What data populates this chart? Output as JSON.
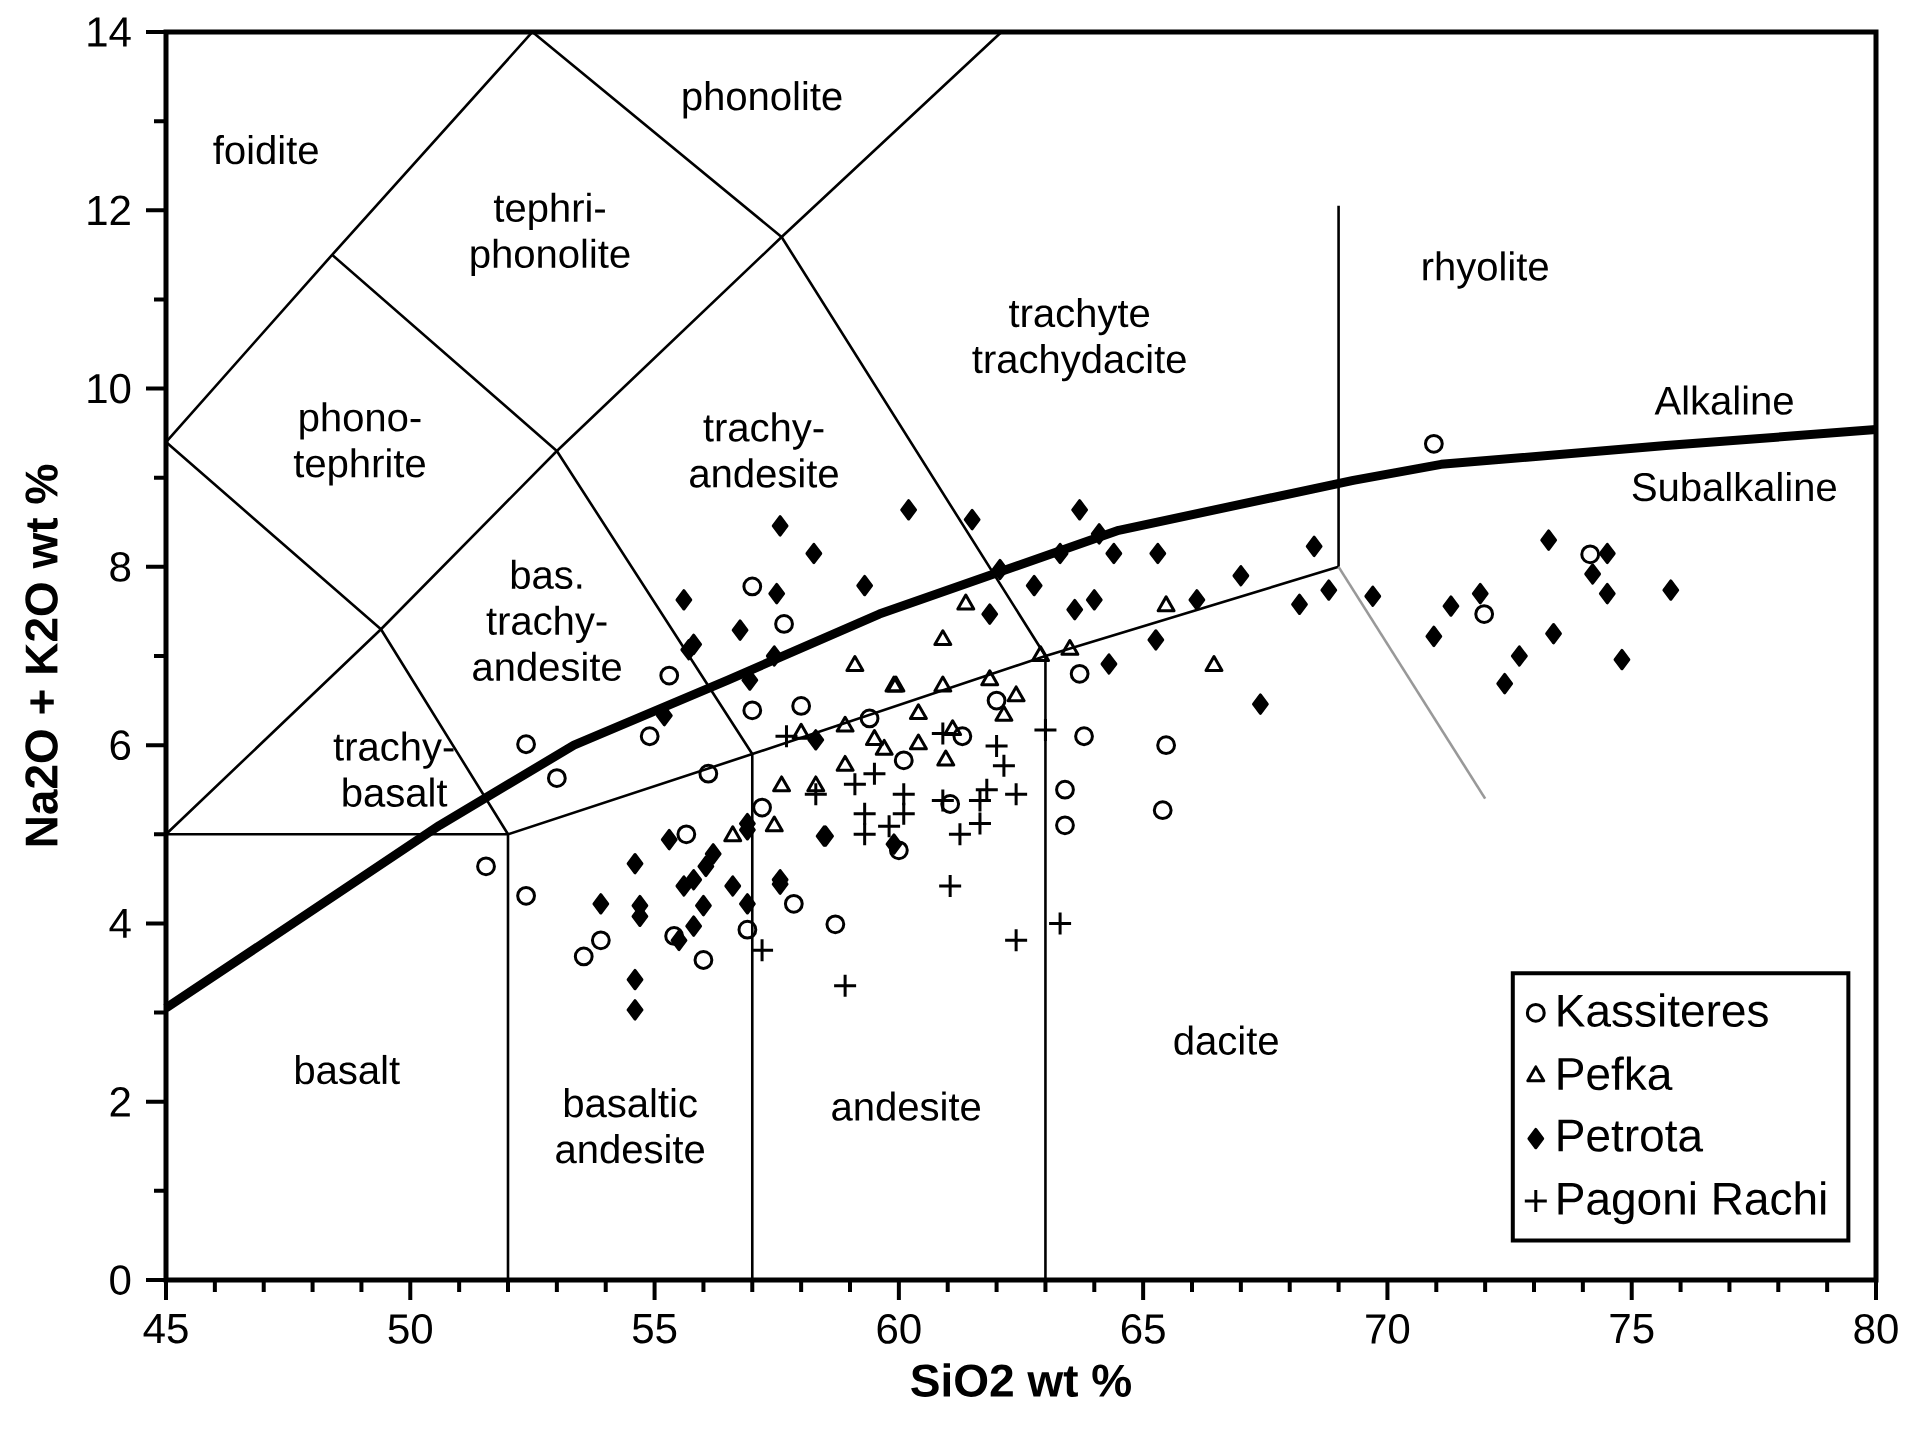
{
  "chart_data": {
    "type": "scatter",
    "xlabel": "SiO2 wt %",
    "ylabel": "Na2O + K2O wt %",
    "xlim": [
      45,
      80
    ],
    "ylim": [
      0,
      14
    ],
    "xticks": [
      45,
      50,
      55,
      60,
      65,
      70,
      75,
      80
    ],
    "yticks": [
      0,
      2,
      4,
      6,
      8,
      10,
      12,
      14
    ],
    "grid": false,
    "legend": "bottom right",
    "annotations": [
      "foidite",
      "phonolite",
      "tephri-phonolite",
      "phono-tephrite",
      "trachy-andesite",
      "trachyte trachydacite",
      "rhyolite",
      "bas. trachy-andesite",
      "trachy-basalt",
      "basalt",
      "basaltic andesite",
      "andesite",
      "dacite",
      "Alkaline",
      "Subalkaline"
    ],
    "series": [
      {
        "type": "line",
        "color": "#000000",
        "marker": "none",
        "line_style": "solid",
        "x": [
          45,
          50.6,
          53.35,
          56.5,
          59.6,
          64.5,
          69.3,
          71.1,
          75.7,
          80
        ],
        "values": [
          3.05,
          5.1,
          6.0,
          6.73,
          7.47,
          8.41,
          8.97,
          9.15,
          9.36,
          9.54
        ]
      },
      {
        "type": "line",
        "color": "#000000",
        "marker": "none",
        "line_style": "solid",
        "x": [
          45,
          48.4,
          52.5
        ],
        "values": [
          9.4,
          11.5,
          14
        ]
      },
      {
        "type": "line",
        "color": "#000000",
        "marker": "none",
        "line_style": "solid",
        "x": [
          45,
          49.4,
          53,
          57.6,
          62.1
        ],
        "values": [
          5,
          7.3,
          9.3,
          11.7,
          14
        ]
      },
      {
        "type": "line",
        "color": "#000000",
        "marker": "none",
        "line_style": "solid",
        "x": [
          45,
          49.4,
          52
        ],
        "values": [
          9.4,
          7.3,
          5
        ]
      },
      {
        "type": "line",
        "color": "#000000",
        "marker": "none",
        "line_style": "solid",
        "x": [
          48.4,
          53,
          57
        ],
        "values": [
          11.5,
          9.3,
          5.9
        ]
      },
      {
        "type": "line",
        "color": "#000000",
        "marker": "none",
        "line_style": "solid",
        "x": [
          52.5,
          57.6,
          63
        ],
        "values": [
          14,
          11.7,
          7
        ]
      },
      {
        "type": "line",
        "color": "#000000",
        "marker": "none",
        "line_style": "solid",
        "x": [
          45,
          52,
          57,
          63,
          69
        ],
        "values": [
          5,
          5,
          5.9,
          7,
          8
        ]
      },
      {
        "type": "line",
        "color": "#000000",
        "marker": "none",
        "line_style": "solid",
        "x": [
          52,
          52
        ],
        "values": [
          0,
          5
        ]
      },
      {
        "type": "line",
        "color": "#000000",
        "marker": "none",
        "line_style": "solid",
        "x": [
          57,
          57
        ],
        "values": [
          0,
          5.9
        ]
      },
      {
        "type": "line",
        "color": "#000000",
        "marker": "none",
        "line_style": "solid",
        "x": [
          63,
          63
        ],
        "values": [
          0,
          7
        ]
      },
      {
        "type": "line",
        "color": "#000000",
        "marker": "none",
        "line_style": "solid",
        "x": [
          69,
          69
        ],
        "values": [
          8,
          12.05
        ]
      },
      {
        "type": "line",
        "color": "#999999",
        "marker": "none",
        "line_style": "solid",
        "x": [
          69,
          72
        ],
        "values": [
          8,
          5.4
        ]
      },
      {
        "name": "Kassiteres",
        "color": "#000000",
        "marker": "circle",
        "x": [
          70.95,
          74.15,
          71.98,
          57.0,
          57.65,
          55.3,
          57.0,
          58.0,
          52.37,
          53.0,
          54.9,
          56.1,
          55.65,
          57.2,
          60.1,
          51.55,
          52.37,
          53.55,
          53.9,
          55.4,
          56.0,
          56.9,
          57.85,
          58.7,
          60.0,
          61.05,
          63.4,
          63.4,
          63.79,
          65.47,
          65.4,
          63.7,
          59.4,
          61.3,
          62.0
        ],
        "values": [
          9.38,
          8.14,
          7.47,
          7.78,
          7.36,
          6.78,
          6.39,
          6.44,
          6.01,
          5.63,
          6.1,
          5.68,
          5.0,
          5.3,
          5.83,
          4.64,
          4.31,
          3.63,
          3.81,
          3.86,
          3.59,
          3.93,
          4.22,
          3.99,
          4.82,
          5.34,
          5.5,
          5.1,
          6.1,
          6.0,
          5.27,
          6.8,
          6.3,
          6.1,
          6.5
        ]
      },
      {
        "name": "Pefka",
        "color": "#000000",
        "marker": "triangle",
        "x": [
          61.37,
          60.9,
          62.9,
          63.5,
          65.47,
          66.45,
          59.94,
          60.9,
          61.86,
          62.4,
          62.15,
          60.4,
          61.1,
          60.4,
          60.96,
          59.7,
          59.1,
          59.9,
          58.0,
          58.9,
          59.5,
          57.6,
          58.3,
          57.45,
          56.6,
          58.9
        ],
        "values": [
          7.58,
          7.18,
          7.0,
          7.07,
          7.56,
          6.89,
          6.66,
          6.66,
          6.73,
          6.55,
          6.33,
          6.35,
          6.17,
          6.01,
          5.83,
          5.95,
          6.89,
          6.66,
          6.13,
          6.21,
          6.06,
          5.54,
          5.54,
          5.09,
          4.98,
          5.77
        ]
      },
      {
        "name": "Petrota",
        "color": "#000000",
        "marker": "diamond",
        "x": [
          55.6,
          57.57,
          58.26,
          59.3,
          60.2,
          61.5,
          56.75,
          57.5,
          55.8,
          55.7,
          56.95,
          57.45,
          55.2,
          58.3,
          58.5,
          55.3,
          56.9,
          54.6,
          53.9,
          54.7,
          55.8,
          56.2,
          56.0,
          56.6,
          57.57,
          55.5,
          54.6,
          59.9,
          54.7,
          55.6,
          56.05,
          55.8,
          56.9,
          57.57,
          56.9,
          54.6,
          58.47,
          62.07,
          63.7,
          64.1,
          64.4,
          65.3,
          63.3,
          62.77,
          61.86,
          63.6,
          64.0,
          66.1,
          67.0,
          68.5,
          68.2,
          68.8,
          64.3,
          65.26,
          67.4,
          69.7,
          70.95,
          71.3,
          71.9,
          72.7,
          72.4,
          73.4,
          73.3,
          74.5,
          74.5,
          74.8,
          75.8,
          74.2
        ],
        "values": [
          7.63,
          8.46,
          8.15,
          7.79,
          8.64,
          8.53,
          7.29,
          7.7,
          7.13,
          7.07,
          6.73,
          7.0,
          6.33,
          6.06,
          4.98,
          4.94,
          5.05,
          4.67,
          4.22,
          4.2,
          4.49,
          4.78,
          4.2,
          4.42,
          4.49,
          3.81,
          3.37,
          4.89,
          4.08,
          4.42,
          4.64,
          3.97,
          5.12,
          4.44,
          4.22,
          3.03,
          4.98,
          7.97,
          8.64,
          8.37,
          8.15,
          8.15,
          8.15,
          7.79,
          7.47,
          7.52,
          7.63,
          7.63,
          7.9,
          8.23,
          7.58,
          7.74,
          6.91,
          7.18,
          6.46,
          7.67,
          7.22,
          7.56,
          7.7,
          7.0,
          6.69,
          7.25,
          8.3,
          8.15,
          7.7,
          6.96,
          7.74,
          7.92
        ]
      },
      {
        "name": "Pagoni Rachi",
        "color": "#000000",
        "marker": "cross",
        "x": [
          57.7,
          58.3,
          59.1,
          59.5,
          59.3,
          59.8,
          60.1,
          57.2,
          58.9,
          63.0,
          62.15,
          62.4,
          61.66,
          61.66,
          60.9,
          60.1,
          61.25,
          61.05,
          62.4,
          63.3,
          60.9,
          62.0,
          59.3,
          61.8
        ],
        "values": [
          6.1,
          5.45,
          5.56,
          5.68,
          5.23,
          5.09,
          5.45,
          3.7,
          3.3,
          6.17,
          5.77,
          5.45,
          5.38,
          5.12,
          5.38,
          5.23,
          5.0,
          4.42,
          3.81,
          4.0,
          6.13,
          5.99,
          5.0,
          5.5
        ]
      }
    ]
  }
}
